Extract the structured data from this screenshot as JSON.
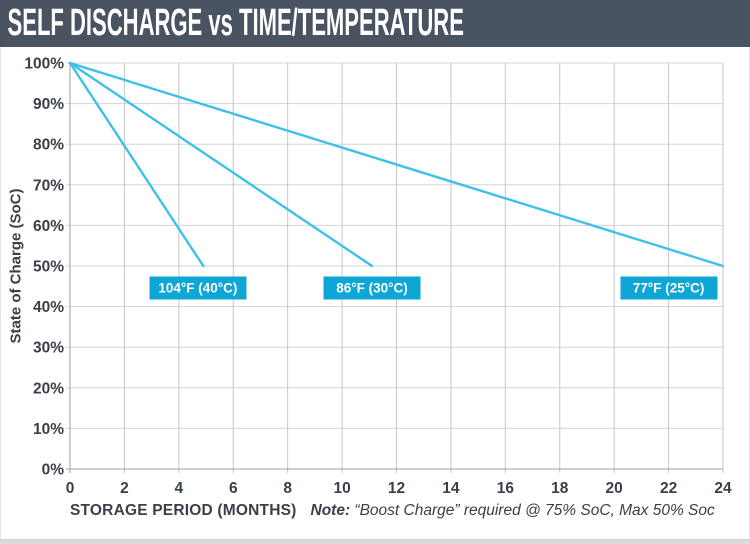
{
  "header": {
    "title": "SELF DISCHARGE vs TIME/TEMPERATURE"
  },
  "colors": {
    "banner_bg": "#4a5361",
    "banner_text": "#ffffff",
    "series_line": "#3fc0e8",
    "label_box_bg": "#0ea6d5",
    "label_box_text": "#ffffff",
    "grid_h": "#d3d6d9",
    "grid_v": "#c3c7cb",
    "axis": "#9aa0a7",
    "text": "#3a4049",
    "bottom_strip": "#d9dbdd"
  },
  "chart_data": {
    "type": "line",
    "title": "SELF DISCHARGE vs TIME/TEMPERATURE",
    "xlabel": "STORAGE PERIOD (MONTHS)",
    "ylabel": "State of Charge (SoC)",
    "xlim": [
      0,
      24
    ],
    "ylim": [
      0,
      100
    ],
    "xticks": [
      0,
      2,
      4,
      6,
      8,
      10,
      12,
      14,
      16,
      18,
      20,
      22,
      24
    ],
    "yticks": [
      0,
      10,
      20,
      30,
      40,
      50,
      60,
      70,
      80,
      90,
      100
    ],
    "ytick_suffix": "%",
    "grid": true,
    "legend_position": "inline-labels",
    "series": [
      {
        "name": "104°F (40°C)",
        "points": [
          [
            0,
            100
          ],
          [
            4.9,
            50
          ]
        ],
        "label_pos": [
          4.7,
          44.5
        ]
      },
      {
        "name": "86°F (30°C)",
        "points": [
          [
            0,
            100
          ],
          [
            11.1,
            50
          ]
        ],
        "label_pos": [
          11.1,
          44.5
        ]
      },
      {
        "name": "77°F (25°C)",
        "points": [
          [
            0,
            100
          ],
          [
            24,
            50
          ]
        ],
        "label_pos": [
          22,
          44.5
        ]
      }
    ],
    "note_label": "Note:",
    "note_text": "“Boost Charge” required @ 75% SoC, Max 50% Soc"
  }
}
